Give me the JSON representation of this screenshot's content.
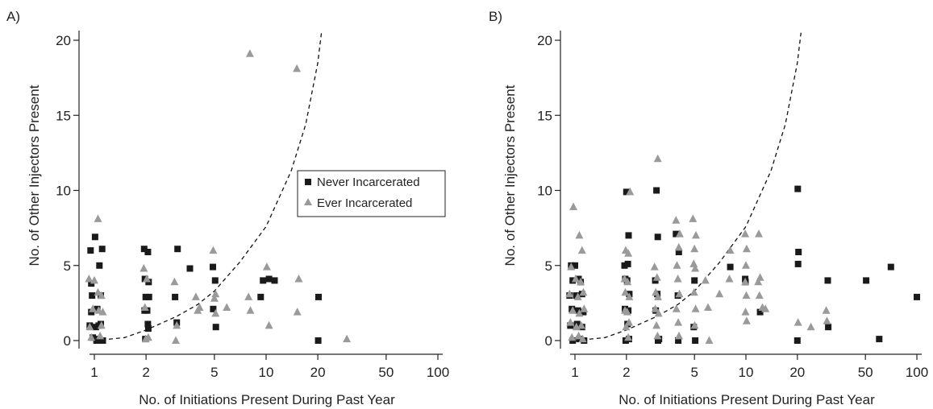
{
  "chart_data": [
    {
      "type": "scatter",
      "panel_label": "A)",
      "xlabel": "No. of Initiations Present During Past Year",
      "ylabel": "No. of Other Injectors Present",
      "x_scale": "log",
      "xlim": [
        0.8,
        130
      ],
      "ylim": [
        -0.5,
        21
      ],
      "x_ticks": [
        1,
        2,
        5,
        10,
        20,
        50,
        100
      ],
      "x_tick_labels": [
        "1",
        "2",
        "5",
        "10",
        "20",
        "50",
        "100"
      ],
      "y_ticks": [
        0,
        5,
        10,
        15,
        20
      ],
      "y_tick_labels": [
        "0",
        "5",
        "10",
        "15",
        "20"
      ],
      "legend": {
        "position": "center-right",
        "entries": [
          {
            "label": "Never Incarcerated",
            "marker": "square",
            "color": "#1a1a1a"
          },
          {
            "label": "Ever Incarcerated",
            "marker": "triangle",
            "color": "#9a9a9a"
          }
        ]
      },
      "fit_curve": {
        "style": "dashed",
        "x": [
          1,
          1.5,
          2,
          3,
          4,
          5,
          7,
          10,
          14,
          17,
          20,
          21
        ],
        "y": [
          0,
          0.2,
          0.7,
          1.6,
          2.4,
          3.3,
          5.2,
          7.6,
          11.3,
          14.4,
          18.5,
          20.5
        ]
      },
      "series": [
        {
          "name": "Never Incarcerated",
          "marker": "square",
          "points": [
            [
              0.95,
              6
            ],
            [
              0.97,
              3
            ],
            [
              0.96,
              1.9
            ],
            [
              0.94,
              1
            ],
            [
              0.98,
              0.2
            ],
            [
              0.96,
              3.8
            ],
            [
              1.01,
              6.9
            ],
            [
              1.04,
              2.1
            ],
            [
              1.06,
              1
            ],
            [
              1.07,
              5
            ],
            [
              1.09,
              3
            ],
            [
              1.11,
              6.1
            ],
            [
              1.03,
              0
            ],
            [
              1.06,
              0.1
            ],
            [
              1.09,
              1.1
            ],
            [
              1.12,
              0
            ],
            [
              1.02,
              0.9
            ],
            [
              1.95,
              6.1
            ],
            [
              2.05,
              5.9
            ],
            [
              1.97,
              4.1
            ],
            [
              2.07,
              3.9
            ],
            [
              1.99,
              2.9
            ],
            [
              2.08,
              2.9
            ],
            [
              1.96,
              2
            ],
            [
              2.03,
              2
            ],
            [
              2.05,
              1.1
            ],
            [
              1.98,
              0.1
            ],
            [
              2.06,
              0.8
            ],
            [
              2.95,
              2.9
            ],
            [
              3.05,
              6.1
            ],
            [
              3.02,
              1.2
            ],
            [
              3.6,
              4.8
            ],
            [
              4.9,
              4.9
            ],
            [
              5.05,
              4
            ],
            [
              4.92,
              2.1
            ],
            [
              5.1,
              0.9
            ],
            [
              9.3,
              2.9
            ],
            [
              9.6,
              4
            ],
            [
              10.4,
              4.1
            ],
            [
              11.2,
              4
            ],
            [
              20.2,
              2.9
            ],
            [
              20.1,
              0
            ]
          ]
        },
        {
          "name": "Ever Incarcerated",
          "marker": "triangle",
          "points": [
            [
              1.05,
              8.1
            ],
            [
              0.93,
              4.1
            ],
            [
              1.0,
              4
            ],
            [
              1.05,
              3.2
            ],
            [
              1.1,
              3
            ],
            [
              0.98,
              2.1
            ],
            [
              1.06,
              2
            ],
            [
              1.12,
              1.9
            ],
            [
              0.94,
              0.9
            ],
            [
              1.1,
              1
            ],
            [
              0.96,
              0.2
            ],
            [
              1.08,
              0.3
            ],
            [
              1.94,
              4.8
            ],
            [
              2.02,
              4.1
            ],
            [
              1.97,
              2.2
            ],
            [
              1.99,
              0.1
            ],
            [
              2.06,
              0.2
            ],
            [
              2.93,
              3.9
            ],
            [
              3.02,
              1
            ],
            [
              2.98,
              0
            ],
            [
              3.9,
              2.9
            ],
            [
              4.1,
              2.2
            ],
            [
              4.0,
              2
            ],
            [
              4.92,
              6
            ],
            [
              5.08,
              3.1
            ],
            [
              5.0,
              2.8
            ],
            [
              5.08,
              1.8
            ],
            [
              5.9,
              2.2
            ],
            [
              7.9,
              2.9
            ],
            [
              8.1,
              2
            ],
            [
              8.05,
              19.1
            ],
            [
              10.1,
              4.9
            ],
            [
              10.4,
              1
            ],
            [
              15.1,
              18.1
            ],
            [
              15.5,
              4.1
            ],
            [
              15.2,
              1.9
            ],
            [
              29.5,
              0.1
            ]
          ]
        }
      ]
    },
    {
      "type": "scatter",
      "panel_label": "B)",
      "xlabel": "No. of Initiations Present During Past Year",
      "ylabel": "No. of Other Injectors Present",
      "x_scale": "log",
      "xlim": [
        0.8,
        130
      ],
      "ylim": [
        -0.5,
        21
      ],
      "x_ticks": [
        1,
        2,
        5,
        10,
        20,
        50,
        100
      ],
      "x_tick_labels": [
        "1",
        "2",
        "5",
        "10",
        "20",
        "50",
        "100"
      ],
      "y_ticks": [
        0,
        5,
        10,
        15,
        20
      ],
      "y_tick_labels": [
        "0",
        "5",
        "10",
        "15",
        "20"
      ],
      "fit_curve": {
        "style": "dashed",
        "x": [
          1,
          1.5,
          2,
          3,
          4,
          5,
          7,
          10,
          14,
          17,
          20,
          21
        ],
        "y": [
          0,
          0.2,
          0.7,
          1.6,
          2.4,
          3.3,
          5.2,
          7.6,
          11.3,
          14.4,
          18.5,
          20.5
        ]
      },
      "series": [
        {
          "name": "Never Incarcerated",
          "marker": "square",
          "points": [
            [
              0.95,
              5
            ],
            [
              1.0,
              5
            ],
            [
              1.05,
              4.1
            ],
            [
              0.97,
              4
            ],
            [
              1.08,
              3.9
            ],
            [
              0.93,
              3
            ],
            [
              1.02,
              3
            ],
            [
              1.1,
              3.1
            ],
            [
              0.96,
              2.1
            ],
            [
              1.04,
              2
            ],
            [
              1.12,
              1.9
            ],
            [
              0.94,
              1
            ],
            [
              1.03,
              1.1
            ],
            [
              1.1,
              0.9
            ],
            [
              0.97,
              0
            ],
            [
              1.06,
              0.1
            ],
            [
              1.13,
              0
            ],
            [
              2.0,
              9.9
            ],
            [
              2.06,
              7
            ],
            [
              1.95,
              5
            ],
            [
              2.04,
              5.1
            ],
            [
              1.97,
              4.1
            ],
            [
              2.02,
              4
            ],
            [
              2.08,
              3.1
            ],
            [
              1.96,
              2.1
            ],
            [
              2.05,
              2
            ],
            [
              2.03,
              1.1
            ],
            [
              1.98,
              0
            ],
            [
              2.07,
              0.1
            ],
            [
              3.0,
              10
            ],
            [
              3.05,
              6.9
            ],
            [
              2.95,
              4
            ],
            [
              3.03,
              3.1
            ],
            [
              2.97,
              2
            ],
            [
              3.06,
              0
            ],
            [
              3.1,
              0.1
            ],
            [
              3.9,
              7.1
            ],
            [
              4.05,
              5.9
            ],
            [
              4.0,
              3
            ],
            [
              4.02,
              0
            ],
            [
              5.0,
              4
            ],
            [
              4.95,
              0.9
            ],
            [
              5.05,
              0
            ],
            [
              8.1,
              4.9
            ],
            [
              9.9,
              4.1
            ],
            [
              9.95,
              3.9
            ],
            [
              12.1,
              1.9
            ],
            [
              20.1,
              10.1
            ],
            [
              20.3,
              5.9
            ],
            [
              20.2,
              5.1
            ],
            [
              20.0,
              0
            ],
            [
              30.1,
              4
            ],
            [
              30.3,
              0.9
            ],
            [
              50.5,
              4
            ],
            [
              60.2,
              0.1
            ],
            [
              70.5,
              4.9
            ],
            [
              100,
              2.9
            ]
          ]
        },
        {
          "name": "Ever Incarcerated",
          "marker": "triangle",
          "points": [
            [
              0.98,
              8.9
            ],
            [
              1.06,
              7
            ],
            [
              1.1,
              6
            ],
            [
              0.95,
              4.9
            ],
            [
              1.01,
              4.1
            ],
            [
              1.08,
              3.9
            ],
            [
              0.93,
              3.1
            ],
            [
              1.04,
              2.9
            ],
            [
              1.12,
              3.2
            ],
            [
              0.97,
              2
            ],
            [
              1.06,
              1.8
            ],
            [
              1.13,
              2.1
            ],
            [
              0.94,
              1.2
            ],
            [
              1.02,
              0.9
            ],
            [
              1.09,
              1
            ],
            [
              0.96,
              0.2
            ],
            [
              1.05,
              0.3
            ],
            [
              1.11,
              0.1
            ],
            [
              1.98,
              6
            ],
            [
              2.05,
              5.8
            ],
            [
              2.1,
              9.9
            ],
            [
              1.95,
              4.1
            ],
            [
              2.03,
              3.9
            ],
            [
              1.97,
              3.2
            ],
            [
              2.08,
              2.9
            ],
            [
              1.96,
              2
            ],
            [
              2.02,
              1.9
            ],
            [
              2.07,
              1.2
            ],
            [
              1.99,
              0.9
            ],
            [
              2.05,
              0.2
            ],
            [
              2.92,
              4.9
            ],
            [
              3.05,
              12.1
            ],
            [
              3.02,
              4.2
            ],
            [
              2.97,
              3.2
            ],
            [
              3.06,
              2.9
            ],
            [
              2.95,
              2.1
            ],
            [
              3.08,
              1.8
            ],
            [
              3.0,
              1
            ],
            [
              3.04,
              0.3
            ],
            [
              3.9,
              8
            ],
            [
              4.1,
              7.1
            ],
            [
              4.05,
              6.2
            ],
            [
              3.95,
              5
            ],
            [
              4.0,
              4.1
            ],
            [
              4.08,
              3.1
            ],
            [
              3.92,
              2.1
            ],
            [
              4.02,
              1.2
            ],
            [
              4.06,
              0.3
            ],
            [
              4.9,
              8.1
            ],
            [
              5.1,
              7
            ],
            [
              5.0,
              6.1
            ],
            [
              4.95,
              5.1
            ],
            [
              5.05,
              4.8
            ],
            [
              4.98,
              3.2
            ],
            [
              5.08,
              2.1
            ],
            [
              5.02,
              1
            ],
            [
              5.8,
              4
            ],
            [
              6.0,
              2.2
            ],
            [
              6.1,
              0
            ],
            [
              7.0,
              3.1
            ],
            [
              8.0,
              4.1
            ],
            [
              8.1,
              6
            ],
            [
              9.9,
              7.1
            ],
            [
              10.1,
              6.1
            ],
            [
              10.0,
              5
            ],
            [
              9.9,
              3.9
            ],
            [
              10.05,
              3
            ],
            [
              9.95,
              1.9
            ],
            [
              10.1,
              1.3
            ],
            [
              11.9,
              7.1
            ],
            [
              12.1,
              4.2
            ],
            [
              11.8,
              3.9
            ],
            [
              12.0,
              3
            ],
            [
              12.5,
              2.2
            ],
            [
              13.0,
              2.1
            ],
            [
              20.2,
              1.2
            ],
            [
              24.0,
              0.9
            ],
            [
              29.5,
              2
            ],
            [
              29.8,
              1.3
            ]
          ]
        }
      ]
    }
  ]
}
